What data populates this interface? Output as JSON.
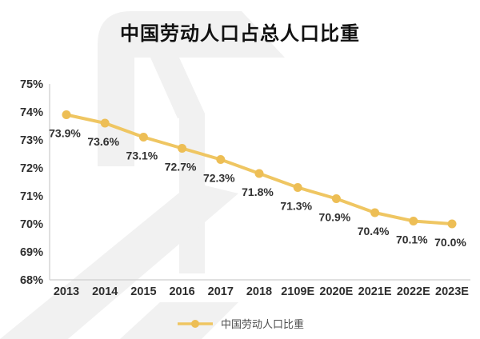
{
  "title": "中国劳动人口占总人口比重",
  "chart_data": {
    "type": "line",
    "title": "中国劳动人口占总人口比重",
    "categories": [
      "2013",
      "2014",
      "2015",
      "2016",
      "2017",
      "2018",
      "2109E",
      "2020E",
      "2021E",
      "2022E",
      "2023E"
    ],
    "series": [
      {
        "name": "中国劳动人口比重",
        "values": [
          73.9,
          73.6,
          73.1,
          72.7,
          72.3,
          71.8,
          71.3,
          70.9,
          70.4,
          70.1,
          70.0
        ]
      }
    ],
    "data_labels": [
      "73.9%",
      "73.6%",
      "73.1%",
      "72.7%",
      "72.3%",
      "71.8%",
      "71.3%",
      "70.9%",
      "70.4%",
      "70.1%",
      "70.0%"
    ],
    "y_axis": {
      "min": 68,
      "max": 75,
      "step": 1,
      "tick_labels": [
        "75%",
        "74%",
        "73%",
        "72%",
        "71%",
        "70%",
        "69%",
        "68%"
      ]
    },
    "x_axis": {
      "tick_labels": [
        "2013",
        "2014",
        "2015",
        "2016",
        "2017",
        "2018",
        "2109E",
        "2020E",
        "2021E",
        "2022E",
        "2023E"
      ]
    },
    "legend": {
      "label": "中国劳动人口比重",
      "position": "bottom"
    },
    "grid": false,
    "colors": {
      "line": "#EFC662",
      "marker": "#EDBE55",
      "axis": "#D6D6D6",
      "data_label": "#303030",
      "tick_label": "#2e2e2e",
      "title": "#111111",
      "watermark": "#F1F1F1"
    }
  }
}
